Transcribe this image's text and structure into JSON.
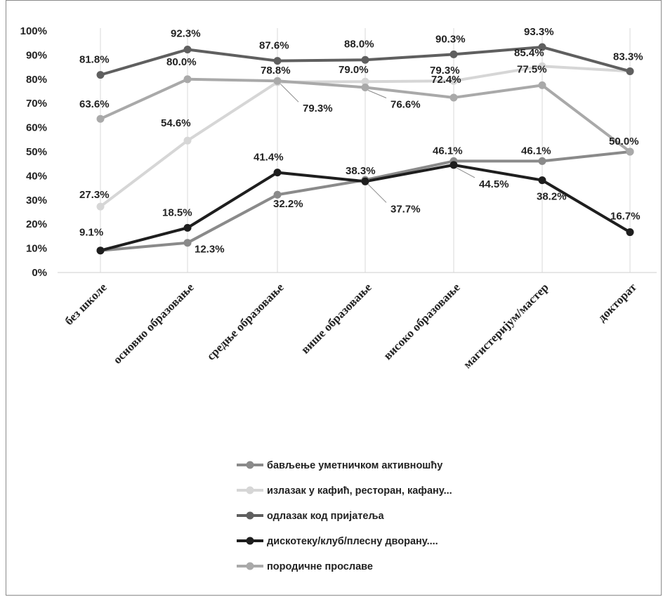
{
  "chart_data": {
    "type": "line",
    "categories": [
      "без школе",
      "основно образовање",
      "средње образовање",
      "више образовање",
      "високо образовање",
      "магистеријум/мастер",
      "докторат"
    ],
    "y_ticks": [
      "0%",
      "10%",
      "20%",
      "30%",
      "40%",
      "50%",
      "60%",
      "70%",
      "80%",
      "90%",
      "100%"
    ],
    "ylim": [
      0,
      100
    ],
    "grid": "vertical lines at categories",
    "legend_position": "bottom",
    "series": [
      {
        "name": "бављење уметничком активношћу",
        "color": "#8a8a8a",
        "values": [
          9.1,
          12.3,
          32.2,
          38.3,
          46.1,
          46.1,
          50.0
        ],
        "labels": [
          "",
          "12.3%",
          "32.2%",
          "38.3%",
          "46.1%",
          "46.1%",
          "50.0%"
        ]
      },
      {
        "name": "излазак у кафић, ресторан, кафану...",
        "color": "#d6d6d6",
        "values": [
          27.3,
          54.6,
          78.8,
          79.0,
          79.3,
          85.4,
          83.3
        ],
        "labels": [
          "27.3%",
          "54.6%",
          "78.8%",
          "79.0%",
          "79.3%",
          "85.4%",
          ""
        ]
      },
      {
        "name": "одлазак код пријатеља",
        "color": "#5f5f5f",
        "values": [
          81.8,
          92.3,
          87.6,
          88.0,
          90.3,
          93.3,
          83.3
        ],
        "labels": [
          "81.8%",
          "92.3%",
          "87.6%",
          "88.0%",
          "90.3%",
          "93.3%",
          "83.3%"
        ]
      },
      {
        "name": "дискотеку/клуб/плесну дворану....",
        "color": "#1e1e1e",
        "values": [
          9.1,
          18.5,
          41.4,
          37.7,
          44.5,
          38.2,
          16.7
        ],
        "labels": [
          "9.1%",
          "18.5%",
          "41.4%",
          "37.7%",
          "44.5%",
          "38.2%",
          "16.7%"
        ]
      },
      {
        "name": "породичне прославе",
        "color": "#a9a9a9",
        "values": [
          63.6,
          80.0,
          79.3,
          76.6,
          72.4,
          77.5,
          50.0
        ],
        "labels": [
          "63.6%",
          "80.0%",
          "79.3%",
          "76.6%",
          "72.4%",
          "77.5%",
          ""
        ]
      }
    ]
  }
}
